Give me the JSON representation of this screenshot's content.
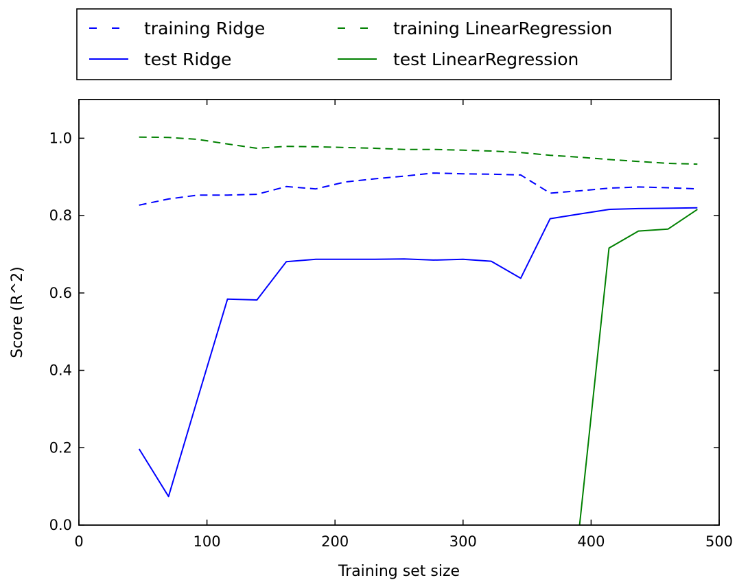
{
  "chart_data": {
    "type": "line",
    "title": "",
    "xlabel": "Training set size",
    "ylabel": "Score (R^2)",
    "xlim": [
      0,
      500
    ],
    "ylim": [
      0,
      1.1
    ],
    "xticks": [
      0,
      100,
      200,
      300,
      400,
      500
    ],
    "xtick_labels": [
      "0",
      "100",
      "200",
      "300",
      "400",
      "500"
    ],
    "yticks": [
      0.0,
      0.2,
      0.4,
      0.6,
      0.8,
      1.0
    ],
    "ytick_labels": [
      "0.0",
      "0.2",
      "0.4",
      "0.6",
      "0.8",
      "1.0"
    ],
    "grid": false,
    "legend_position": "above plot, two columns",
    "series": [
      {
        "name": "training Ridge",
        "color": "#0000ff",
        "style": "dashed",
        "x": [
          47,
          70,
          93,
          116,
          139,
          162,
          185,
          208,
          231,
          254,
          277,
          300,
          322,
          345,
          368,
          391,
          414,
          437,
          460,
          483
        ],
        "y": [
          0.827,
          0.843,
          0.853,
          0.853,
          0.855,
          0.875,
          0.869,
          0.887,
          0.895,
          0.902,
          0.91,
          0.908,
          0.907,
          0.905,
          0.858,
          0.864,
          0.871,
          0.874,
          0.872,
          0.869
        ]
      },
      {
        "name": "test Ridge",
        "color": "#0000ff",
        "style": "solid",
        "x": [
          47,
          70,
          93,
          116,
          139,
          162,
          185,
          208,
          231,
          254,
          277,
          300,
          322,
          345,
          368,
          391,
          414,
          437,
          460,
          483
        ],
        "y": [
          0.197,
          0.074,
          0.33,
          0.584,
          0.582,
          0.681,
          0.687,
          0.687,
          0.687,
          0.688,
          0.685,
          0.687,
          0.682,
          0.638,
          0.792,
          0.804,
          0.816,
          0.818,
          0.819,
          0.82
        ]
      },
      {
        "name": "training LinearRegression",
        "color": "#008000",
        "style": "dashed",
        "x": [
          47,
          70,
          93,
          116,
          139,
          162,
          185,
          208,
          231,
          254,
          277,
          300,
          322,
          345,
          368,
          391,
          414,
          437,
          460,
          483
        ],
        "y": [
          1.003,
          1.002,
          0.997,
          0.985,
          0.974,
          0.979,
          0.978,
          0.976,
          0.974,
          0.971,
          0.971,
          0.969,
          0.967,
          0.963,
          0.956,
          0.951,
          0.945,
          0.94,
          0.935,
          0.933
        ]
      },
      {
        "name": "test LinearRegression",
        "color": "#008000",
        "style": "solid",
        "x": [
          391,
          414,
          437,
          460,
          483
        ],
        "y": [
          0.0,
          0.716,
          0.76,
          0.765,
          0.816
        ]
      }
    ]
  }
}
